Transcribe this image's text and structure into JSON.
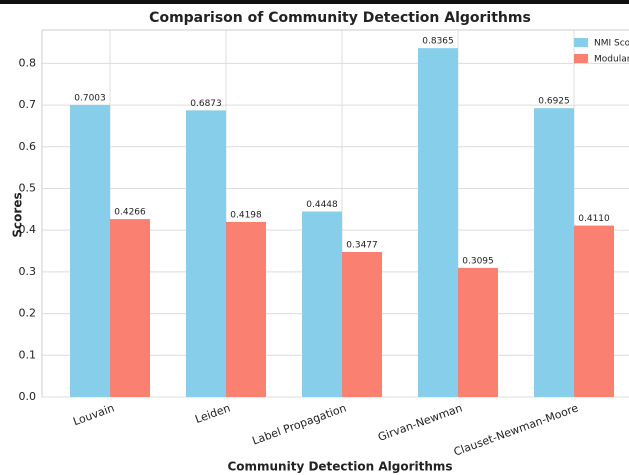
{
  "chart_data": {
    "type": "bar",
    "title": "Comparison of Community Detection Algorithms",
    "xlabel": "Community Detection Algorithms",
    "ylabel": "Scores",
    "categories": [
      "Louvain",
      "Leiden",
      "Label Propagation",
      "Girvan-Newman",
      "Clauset-Newman-Moore"
    ],
    "series": [
      {
        "name": "NMI Score",
        "color": "#87ceeb",
        "values": [
          0.7003,
          0.6873,
          0.4448,
          0.8365,
          0.6925
        ],
        "value_labels": [
          "0.7003",
          "0.6873",
          "0.4448",
          "0.8365",
          "0.6925"
        ]
      },
      {
        "name": "Modularity",
        "color": "#fa8072",
        "values": [
          0.4266,
          0.4198,
          0.3477,
          0.3095,
          0.411
        ],
        "value_labels": [
          "0.4266",
          "0.4198",
          "0.3477",
          "0.3095",
          "0.4110"
        ]
      }
    ],
    "ylim": [
      0,
      0.88
    ],
    "yticks": [
      {
        "value": 0,
        "label": "0.0"
      },
      0.1,
      0.2,
      0.3,
      0.4,
      0.5,
      0.6,
      0.7,
      0.8
    ],
    "grid": true,
    "legend": "upper right"
  }
}
